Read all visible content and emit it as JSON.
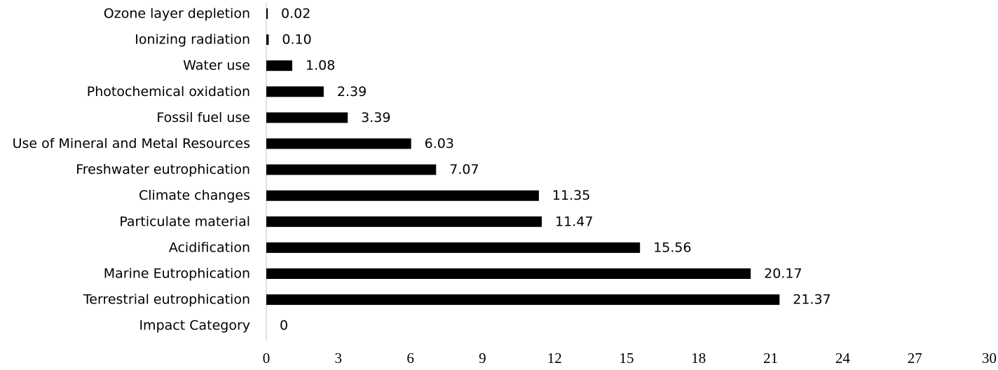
{
  "chart_data": {
    "type": "bar",
    "orientation": "horizontal",
    "title": "",
    "xlabel": "",
    "ylabel": "",
    "categories": [
      "Ozone layer depletion",
      "Ionizing radiation",
      "Water use",
      "Photochemical oxidation",
      "Fossil fuel use ",
      "Use of Mineral and Metal Resources",
      "Freshwater eutrophication",
      "Climate changes",
      "Particulate material",
      "Acidification",
      "Marine Eutrophication",
      "Terrestrial eutrophication",
      "Impact Category"
    ],
    "values": [
      0.02,
      0.1,
      1.08,
      2.39,
      3.39,
      6.03,
      7.07,
      11.35,
      11.47,
      15.56,
      20.17,
      21.37,
      0
    ],
    "value_labels": [
      "0.02",
      "0.10",
      "1.08",
      "2.39",
      "3.39",
      "6.03",
      "7.07",
      "11.35",
      "11.47",
      "15.56",
      "20.17",
      "21.37",
      "0"
    ],
    "xlim": [
      0,
      30
    ],
    "xticks": [
      0,
      3,
      6,
      9,
      12,
      15,
      18,
      21,
      24,
      27,
      30
    ],
    "grid": false,
    "legend": "none",
    "bar_color": "#000000"
  }
}
